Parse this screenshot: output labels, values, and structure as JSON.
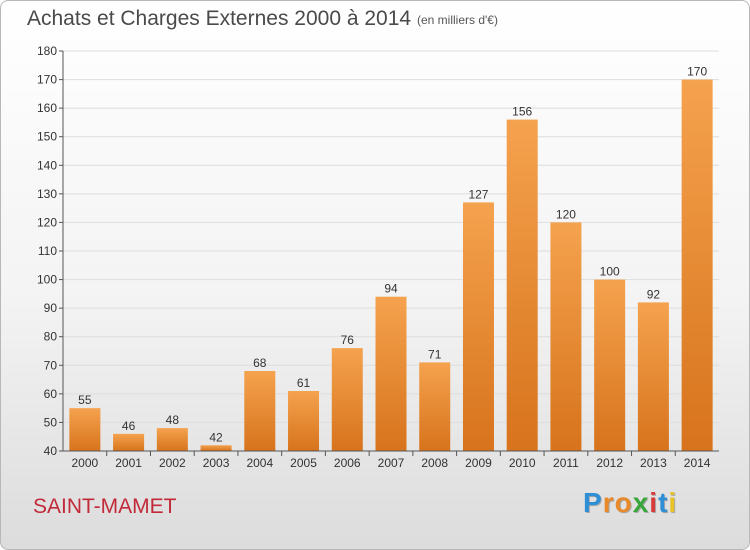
{
  "header": {
    "title": "Achats et Charges Externes 2000 à 2014",
    "unit": "(en milliers d'€)"
  },
  "footer": {
    "place": "SAINT-MAMET",
    "brand_letters": [
      "P",
      "r",
      "o",
      "x",
      "i",
      "t",
      "i"
    ],
    "brand_colors": [
      "#2e8fd6",
      "#e8892a",
      "#e8892a",
      "#3aa63a",
      "#d93a3a",
      "#2e8fd6",
      "#e8c227"
    ]
  },
  "colors": {
    "bar_light": "#f5a24e",
    "bar_dark": "#d7731c",
    "grid": "#dddddd",
    "axis": "#555555",
    "text": "#333333"
  },
  "chart_data": {
    "type": "bar",
    "title": "Achats et Charges Externes 2000 à 2014",
    "categories": [
      "2000",
      "2001",
      "2002",
      "2003",
      "2004",
      "2005",
      "2006",
      "2007",
      "2008",
      "2009",
      "2010",
      "2011",
      "2012",
      "2013",
      "2014"
    ],
    "values": [
      55,
      46,
      48,
      42,
      68,
      61,
      76,
      94,
      71,
      127,
      156,
      120,
      100,
      92,
      170
    ],
    "ylim": [
      40,
      180
    ],
    "yticks": [
      40,
      50,
      60,
      70,
      80,
      90,
      100,
      110,
      120,
      130,
      140,
      150,
      160,
      170,
      180
    ],
    "grid": true,
    "xlabel": "",
    "ylabel": ""
  }
}
